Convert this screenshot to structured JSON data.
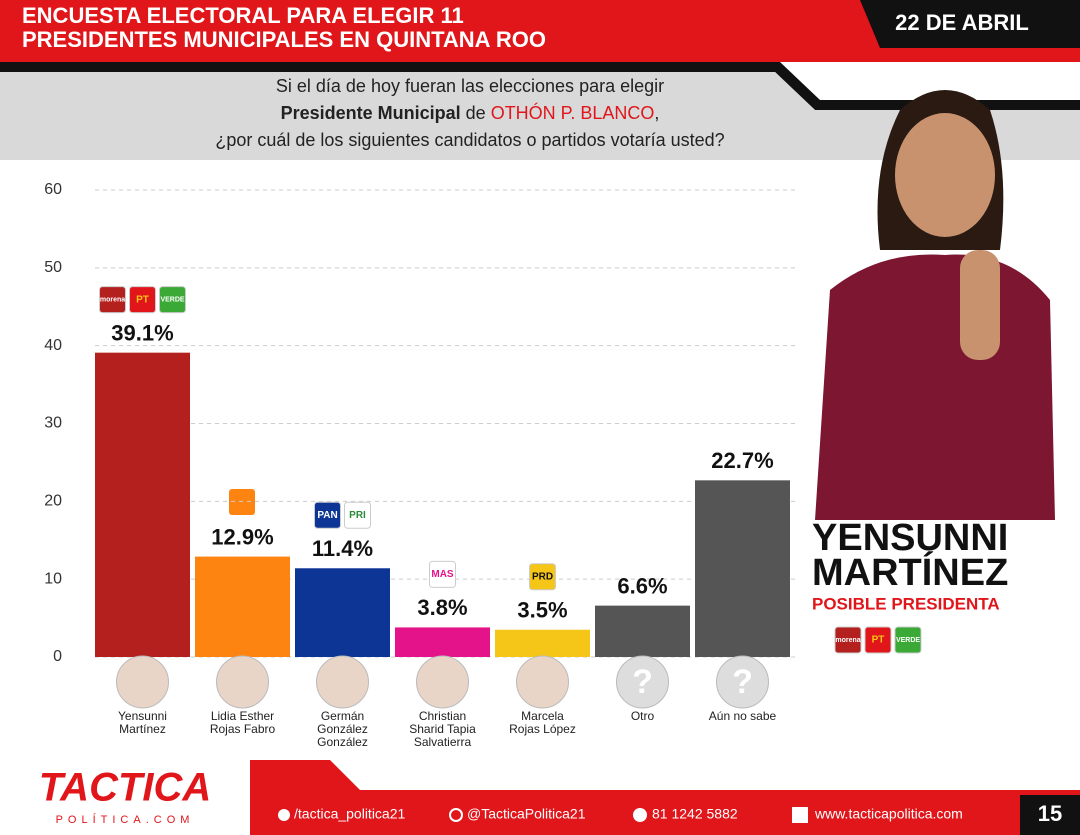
{
  "header": {
    "title_lines": [
      "ENCUESTA ELECTORAL PARA ELEGIR 11",
      "PRESIDENTES MUNICIPALES EN QUINTANA ROO"
    ],
    "date": "22 DE ABRIL"
  },
  "question": {
    "line1": "Si el día de hoy fueran las elecciones para elegir",
    "line2_bold": "Presidente Municipal",
    "line2_mid": "de",
    "line2_highlight": "OTHÓN P. BLANCO",
    "line2_end": ",",
    "line3": "¿por cuál de los siguientes candidatos o partidos votaría usted?"
  },
  "chart_data": {
    "type": "bar",
    "categories": [
      "Yensunni Martínez",
      "Lidia Esther Rojas Fabro",
      "Germán González González",
      "Christian Sharid Tapia Salvatierra",
      "Marcela Rojas López",
      "Otro",
      "Aún no sabe"
    ],
    "values": [
      39.1,
      12.9,
      11.4,
      3.8,
      3.5,
      6.6,
      22.7
    ],
    "value_labels": [
      "39.1%",
      "12.9%",
      "11.4%",
      "3.8%",
      "3.5%",
      "6.6%",
      "22.7%"
    ],
    "colors": [
      "#b3201e",
      "#fd8410",
      "#0d3596",
      "#e4138a",
      "#f5c518",
      "#555555",
      "#555555"
    ],
    "party_logos": [
      [
        "morena",
        "PT",
        "VERDE"
      ],
      [],
      [
        "PAN",
        "PRI"
      ],
      [
        "MAS"
      ],
      [
        "PRD"
      ],
      [],
      []
    ],
    "unknown_mark": "?",
    "ylim": [
      0,
      60
    ],
    "yticks": [
      0,
      10,
      20,
      30,
      40,
      50,
      60
    ],
    "grid": true
  },
  "candidate": {
    "name_lines": [
      "YENSUNNI",
      "MARTÍNEZ"
    ],
    "subtitle": "POSIBLE PRESIDENTA",
    "parties": [
      "morena",
      "PT",
      "VERDE"
    ]
  },
  "footer": {
    "brand": "TACTICA",
    "brand_sub": "POLÍTICA.COM",
    "facebook": "/tactica_politica21",
    "instagram": "@TacticaPolitica21",
    "phone": "81 1242 5882",
    "web": "www.tacticapolitica.com",
    "page": "15"
  }
}
